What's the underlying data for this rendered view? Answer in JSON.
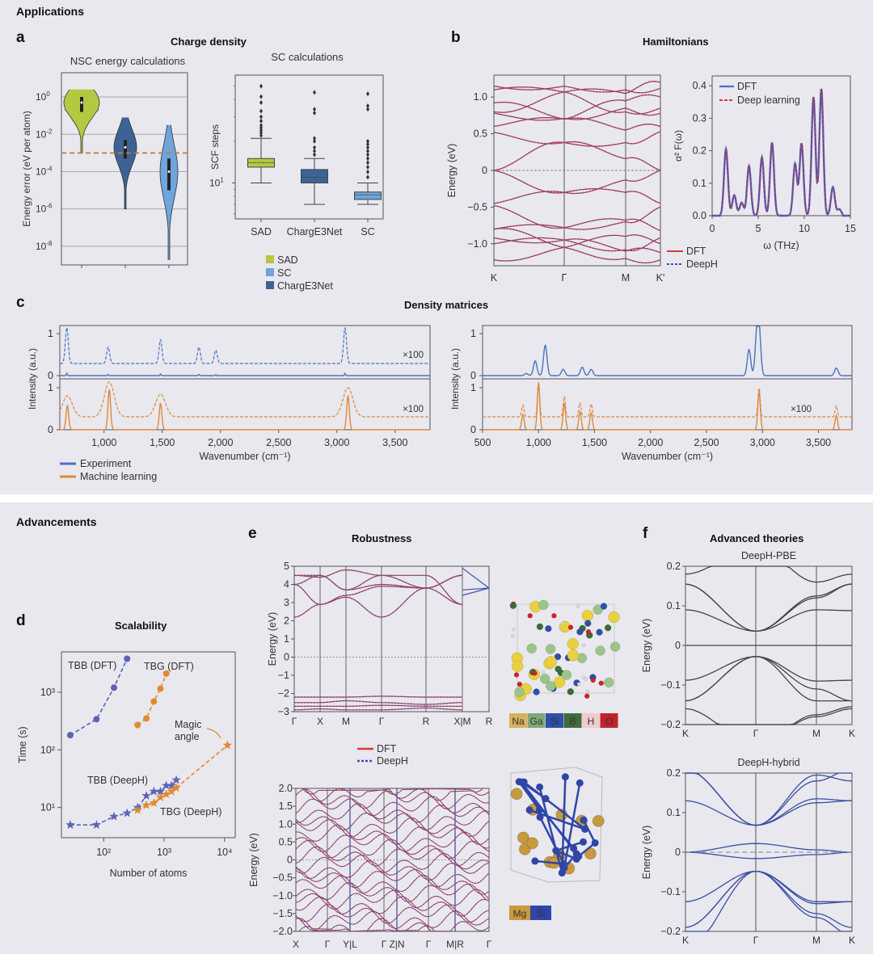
{
  "sections": {
    "applications": "Applications",
    "advancements": "Advancements"
  },
  "panels": {
    "a": {
      "letter": "a",
      "title": "Charge density"
    },
    "b": {
      "letter": "b",
      "title": "Hamiltonians"
    },
    "c": {
      "letter": "c",
      "title": "Density matrices"
    },
    "d": {
      "letter": "d",
      "title": "Scalability"
    },
    "e": {
      "letter": "e",
      "title": "Robustness"
    },
    "f": {
      "letter": "f",
      "title": "Advanced theories"
    }
  },
  "colors": {
    "sad": "#b5c842",
    "charge3net": "#3d6396",
    "sc": "#6fa4dc",
    "dft_red": "#d83a3a",
    "deeph_blue": "#3f4fb5",
    "exp_blue": "#4a72c0",
    "ml_orange": "#e0883a",
    "tbb_purple": "#5a62b8",
    "tbg_orange": "#e08a2c",
    "band_grey": "#444",
    "hybrid_blue": "#3b4ea3"
  },
  "chart_data": [
    {
      "id": "a-violin",
      "type": "violin",
      "title": "NSC energy calculations",
      "ylabel": "Energy error (eV per atom)",
      "yscale": "log",
      "ylim_log10": [
        -9,
        1.3
      ],
      "yticks": [
        "10^0",
        "10^-2",
        "10^-4",
        "10^-6",
        "10^-8"
      ],
      "ytick_exp": [
        0,
        -2,
        -4,
        -6,
        -8
      ],
      "threshold_log10": -3,
      "series": [
        {
          "name": "SAD",
          "min_log10": -3,
          "max_log10": 0.4,
          "median_log10": -0.3,
          "q1_log10": -0.8,
          "q3_log10": 0.0
        },
        {
          "name": "ChargE3Net",
          "min_log10": -6,
          "max_log10": -1.1,
          "median_log10": -2.7,
          "q1_log10": -3.3,
          "q3_log10": -2.3
        },
        {
          "name": "SC",
          "min_log10": -8.7,
          "max_log10": -1.5,
          "median_log10": -4,
          "q1_log10": -5,
          "q3_log10": -3.3
        }
      ]
    },
    {
      "id": "a-box",
      "type": "box",
      "title": "SC calculations",
      "ylabel": "SCF steps",
      "ytick_label": "10^1",
      "categories": [
        "SAD",
        "ChargE3Net",
        "SC"
      ],
      "series": [
        {
          "name": "SAD",
          "whisker_low": 10,
          "q1": 13,
          "median": 14,
          "q3": 15,
          "whisker_high": 21,
          "outliers": [
            22,
            23,
            24,
            25,
            26,
            28,
            30,
            33,
            38,
            42,
            50
          ]
        },
        {
          "name": "ChargE3Net",
          "whisker_low": 7,
          "q1": 10,
          "median": 11,
          "q3": 12.5,
          "whisker_high": 15,
          "outliers": [
            16,
            17,
            18,
            20,
            21,
            32,
            34,
            45
          ]
        },
        {
          "name": "SC",
          "whisker_low": 7,
          "q1": 7.6,
          "median": 8.2,
          "q3": 8.6,
          "whisker_high": 10,
          "outliers": [
            11,
            12,
            13,
            14,
            15,
            16,
            17,
            18,
            19,
            20,
            34,
            36,
            44
          ]
        }
      ],
      "legend": [
        "SAD",
        "SC",
        "ChargE3Net"
      ]
    },
    {
      "id": "b-bands",
      "type": "line",
      "ylabel": "Energy (eV)",
      "ylim": [
        -1.3,
        1.3
      ],
      "yticks": [
        "1.0",
        "0.5",
        "0",
        "−0.5",
        "−1.0"
      ],
      "ytick_values": [
        1.0,
        0.5,
        0,
        -0.5,
        -1.0
      ],
      "xticks": [
        "K",
        "Γ",
        "M",
        "K'"
      ],
      "legend": [
        "DFT",
        "DeepH"
      ]
    },
    {
      "id": "b-eliashberg",
      "type": "line",
      "xlabel": "ω (THz)",
      "ylabel": "α² F(ω)",
      "xlim": [
        0,
        15
      ],
      "ylim": [
        0,
        0.43
      ],
      "xticks": [
        "0",
        "5",
        "10",
        "15"
      ],
      "xtick_values": [
        0,
        5,
        10,
        15
      ],
      "yticks": [
        "0.0",
        "0.1",
        "0.2",
        "0.3",
        "0.4"
      ],
      "ytick_values": [
        0,
        0.1,
        0.2,
        0.3,
        0.4
      ],
      "legend": [
        "DFT",
        "Deep learning"
      ],
      "peaks": [
        [
          1.5,
          0.205
        ],
        [
          2.4,
          0.063
        ],
        [
          3.2,
          0.04
        ],
        [
          4.0,
          0.153
        ],
        [
          5.4,
          0.18
        ],
        [
          6.5,
          0.225
        ],
        [
          9.0,
          0.16
        ],
        [
          9.7,
          0.222
        ],
        [
          11.0,
          0.365
        ],
        [
          11.85,
          0.39
        ],
        [
          13.1,
          0.088
        ],
        [
          13.8,
          0.02
        ]
      ]
    },
    {
      "id": "c-left",
      "type": "line",
      "xlabel": "Wavenumber (cm⁻¹)",
      "ylabel": "Intensity (a.u.)",
      "xlim": [
        620,
        3800
      ],
      "xticks": [
        "1,000",
        "1,500",
        "2,000",
        "2,500",
        "3,000",
        "3,500"
      ],
      "xtick_values": [
        1000,
        1500,
        2000,
        2500,
        3000,
        3500
      ],
      "scale_label": "×100",
      "legend": [
        "Experiment",
        "Machine learning"
      ],
      "experiment_peaks": [
        [
          680,
          1.2
        ],
        [
          1035,
          0.55
        ],
        [
          1485,
          0.8
        ],
        [
          1815,
          0.55
        ],
        [
          1960,
          0.45
        ],
        [
          3070,
          1.2
        ]
      ],
      "ml_peaks": [
        [
          685,
          0.72
        ],
        [
          1045,
          1.2
        ],
        [
          1485,
          0.78
        ],
        [
          3095,
          1.0
        ]
      ]
    },
    {
      "id": "c-right",
      "type": "line",
      "xlabel": "Wavenumber (cm⁻¹)",
      "ylabel": "Intensity (a.u.)",
      "xlim": [
        500,
        3800
      ],
      "xticks": [
        "500",
        "1,000",
        "1,500",
        "2,000",
        "2,500",
        "3,000",
        "3,500"
      ],
      "xtick_values": [
        500,
        1000,
        1500,
        2000,
        2500,
        3000,
        3500
      ],
      "scale_label": "×100",
      "experiment_peaks": [
        [
          890,
          0.05
        ],
        [
          970,
          0.35
        ],
        [
          1060,
          0.72
        ],
        [
          1220,
          0.15
        ],
        [
          1390,
          0.2
        ],
        [
          1470,
          0.15
        ],
        [
          2880,
          0.62
        ],
        [
          2950,
          0.85
        ],
        [
          2970,
          1.0
        ],
        [
          3660,
          0.18
        ]
      ],
      "ml_peaks": [
        [
          860,
          0.4
        ],
        [
          1000,
          1.2
        ],
        [
          1230,
          0.7
        ],
        [
          1370,
          0.48
        ],
        [
          1470,
          0.45
        ],
        [
          2970,
          1.0
        ],
        [
          3660,
          0.38
        ]
      ]
    },
    {
      "id": "d-scaling",
      "type": "scatter",
      "xlabel": "Number of atoms",
      "ylabel": "Time (s)",
      "xscale": "log",
      "yscale": "log",
      "xlim": [
        20,
        15000
      ],
      "ylim": [
        3,
        5000
      ],
      "xticks": [
        "10²",
        "10³",
        "10⁴"
      ],
      "xtick_values": [
        100,
        1000,
        10000
      ],
      "yticks": [
        "10¹",
        "10²",
        "10³"
      ],
      "ytick_values": [
        10,
        100,
        1000
      ],
      "annotation": "Magic angle",
      "series": [
        {
          "name": "TBB (DFT)",
          "marker": "circle",
          "x": [
            28,
            76,
            148,
            244
          ],
          "y": [
            180,
            340,
            1200,
            3800
          ]
        },
        {
          "name": "TBG (DFT)",
          "marker": "circle",
          "x": [
            364,
            508,
            676,
            868,
            1084
          ],
          "y": [
            270,
            350,
            690,
            1150,
            2100
          ]
        },
        {
          "name": "TBB (DeepH)",
          "marker": "star",
          "x": [
            28,
            76,
            148,
            244,
            364,
            508,
            676,
            868,
            1084,
            1324,
            1588
          ],
          "y": [
            5,
            5,
            7,
            8,
            10,
            16,
            19,
            19,
            24,
            24,
            30
          ]
        },
        {
          "name": "TBG (DeepH)",
          "marker": "star",
          "x": [
            364,
            508,
            676,
            868,
            1084,
            1324,
            1588,
            11164
          ],
          "y": [
            9,
            11,
            12,
            15,
            17,
            19,
            22,
            120
          ]
        }
      ]
    },
    {
      "id": "e-top",
      "type": "line",
      "ylabel": "Energy (eV)",
      "ylim": [
        -3,
        5
      ],
      "yticks": [
        "5",
        "4",
        "3",
        "2",
        "1",
        "0",
        "−1",
        "−2",
        "−3"
      ],
      "ytick_values": [
        5,
        4,
        3,
        2,
        1,
        0,
        -1,
        -2,
        -3
      ],
      "xticks": [
        "Γ",
        "X",
        "M",
        "Γ",
        "R",
        "X|M",
        "R"
      ],
      "legend": [
        "DFT",
        "DeepH"
      ],
      "structure_legend": [
        "Na",
        "Ga",
        "Si",
        "B",
        "H",
        "O"
      ],
      "structure_colors": [
        "#d9b25a",
        "#7ea878",
        "#2f4fa8",
        "#3e6b3a",
        "#efcccc",
        "#c0232c"
      ]
    },
    {
      "id": "e-bottom",
      "type": "line",
      "ylabel": "Energy (eV)",
      "ylim": [
        -2,
        2
      ],
      "yticks": [
        "2.0",
        "1.5",
        "1.0",
        "0.5",
        "0",
        "−0.5",
        "−1.0",
        "−1.5",
        "−2.0"
      ],
      "ytick_values": [
        2,
        1.5,
        1,
        0.5,
        0,
        -0.5,
        -1,
        -1.5,
        -2
      ],
      "xticks": [
        "X",
        "Γ",
        "Y|L",
        "Γ",
        "Z|N",
        "Γ",
        "M|R",
        "Γ"
      ],
      "structure_legend": [
        "Mg",
        "Si"
      ],
      "structure_colors": [
        "#c99a3c",
        "#2f46a8"
      ]
    },
    {
      "id": "f-pbe",
      "type": "line",
      "title": "DeepH-PBE",
      "ylabel": "Energy (eV)",
      "ylim": [
        -0.2,
        0.2
      ],
      "yticks": [
        "0.2",
        "0.1",
        "0",
        "−0.1",
        "−0.2"
      ],
      "ytick_values": [
        0.2,
        0.1,
        0,
        -0.1,
        -0.2
      ],
      "xticks": [
        "K",
        "Γ",
        "M",
        "K"
      ]
    },
    {
      "id": "f-hybrid",
      "type": "line",
      "title": "DeepH-hybrid",
      "ylabel": "Energy (eV)",
      "ylim": [
        -0.2,
        0.2
      ],
      "yticks": [
        "0.2",
        "0.1",
        "0",
        "−0.1",
        "−0.2"
      ],
      "ytick_values": [
        0.2,
        0.1,
        0,
        -0.1,
        -0.2
      ],
      "xticks": [
        "K",
        "Γ",
        "M",
        "K"
      ]
    }
  ]
}
